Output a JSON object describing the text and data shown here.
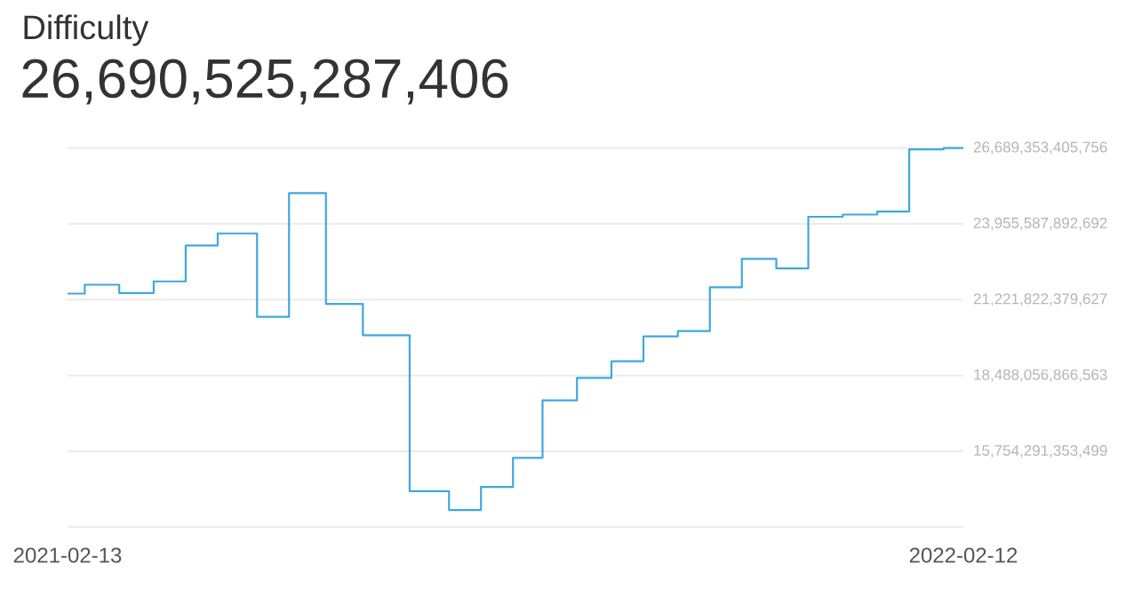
{
  "chart_data": {
    "type": "step",
    "title": "Difficulty",
    "subtitle": "26,690,525,287,406",
    "x": [
      "2021-02-13",
      "2021-02-20",
      "2021-03-06",
      "2021-03-20",
      "2021-04-02",
      "2021-04-15",
      "2021-05-01",
      "2021-05-14",
      "2021-05-29",
      "2021-06-13",
      "2021-07-02",
      "2021-07-18",
      "2021-07-31",
      "2021-08-13",
      "2021-08-25",
      "2021-09-08",
      "2021-09-22",
      "2021-10-05",
      "2021-10-19",
      "2021-11-01",
      "2021-11-14",
      "2021-11-28",
      "2021-12-11",
      "2021-12-25",
      "2022-01-08",
      "2022-01-21",
      "2022-02-04",
      "2022-02-12"
    ],
    "series": [
      {
        "color": "#3ea9dc",
        "values": [
          21440000000000,
          21760000000000,
          21460000000000,
          21880000000000,
          23170000000000,
          23610000000000,
          20600000000000,
          25060000000000,
          21070000000000,
          19940000000000,
          14320000000000,
          13640000000000,
          14470000000000,
          15520000000000,
          17590000000000,
          18400000000000,
          19000000000000,
          19900000000000,
          20090000000000,
          21670000000000,
          22690000000000,
          22350000000000,
          24210000000000,
          24290000000000,
          24400000000000,
          26640000000000,
          26689000000000,
          26689000000000
        ]
      }
    ],
    "xlim": [
      "2021-02-13",
      "2022-02-12"
    ],
    "xticks": [
      "2021-02-13",
      "2022-02-12"
    ],
    "ylim": [
      13020525840435,
      26689353405756
    ],
    "yticks": [
      {
        "value": 15754291353499,
        "label": "15,754,291,353,499"
      },
      {
        "value": 18488056866563,
        "label": "18,488,056,866,563"
      },
      {
        "value": 21221822379627,
        "label": "21,221,822,379,627"
      },
      {
        "value": 23955587892692,
        "label": "23,955,587,892,692"
      },
      {
        "value": 26689353405756,
        "label": "26,689,353,405,756"
      }
    ],
    "grid": "y",
    "marker": "none",
    "line_style": "solid"
  }
}
